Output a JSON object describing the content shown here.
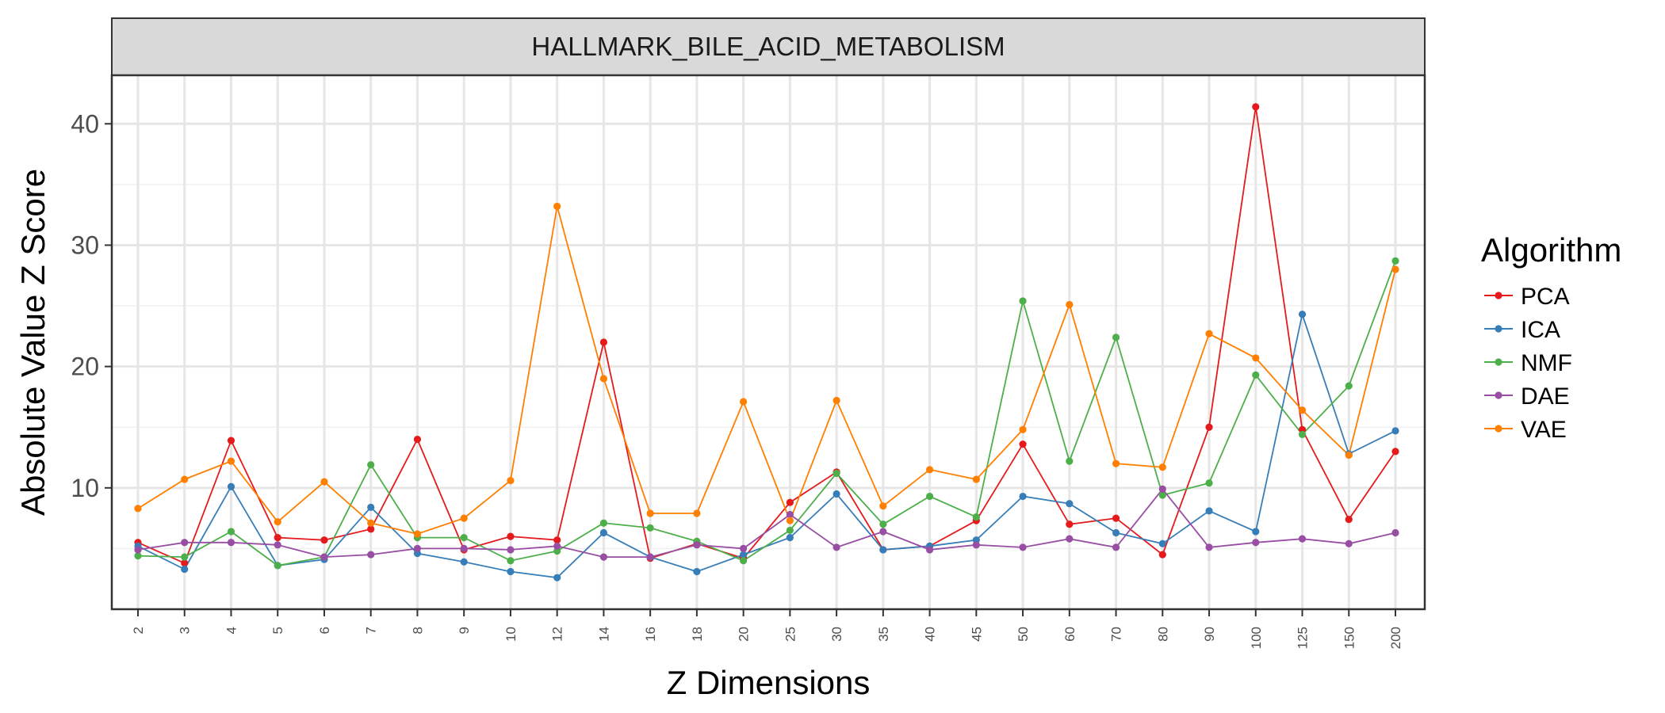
{
  "chart_data": {
    "type": "line",
    "facet_title": "HALLMARK_BILE_ACID_METABOLISM",
    "xlabel": "Z Dimensions",
    "ylabel": "Absolute Value Z Score",
    "categories": [
      "2",
      "3",
      "4",
      "5",
      "6",
      "7",
      "8",
      "9",
      "10",
      "12",
      "14",
      "16",
      "18",
      "20",
      "25",
      "30",
      "35",
      "40",
      "45",
      "50",
      "60",
      "70",
      "80",
      "90",
      "100",
      "125",
      "150",
      "200"
    ],
    "ylim": [
      0,
      44
    ],
    "yticks": [
      10,
      20,
      30,
      40
    ],
    "grid": true,
    "legend": {
      "title": "Algorithm",
      "position": "right"
    },
    "series": [
      {
        "name": "PCA",
        "color": "#e41a1c",
        "values": [
          5.5,
          3.8,
          13.9,
          5.9,
          5.7,
          6.6,
          14.0,
          4.9,
          6.0,
          5.7,
          22.0,
          4.2,
          5.4,
          4.2,
          8.8,
          11.3,
          4.9,
          5.2,
          7.3,
          13.6,
          7.0,
          7.5,
          4.5,
          15.0,
          41.4,
          14.8,
          7.4,
          13.0
        ]
      },
      {
        "name": "ICA",
        "color": "#377eb8",
        "values": [
          5.2,
          3.3,
          10.1,
          3.6,
          4.1,
          8.4,
          4.6,
          3.9,
          3.1,
          2.6,
          6.3,
          4.3,
          3.1,
          4.5,
          5.9,
          9.5,
          4.9,
          5.2,
          5.7,
          9.3,
          8.7,
          6.3,
          5.4,
          8.1,
          6.4,
          24.3,
          12.8,
          14.7
        ]
      },
      {
        "name": "NMF",
        "color": "#4daf4a",
        "values": [
          4.4,
          4.3,
          6.4,
          3.6,
          4.3,
          11.9,
          5.9,
          5.9,
          4.0,
          4.8,
          7.1,
          6.7,
          5.6,
          4.0,
          6.5,
          11.2,
          7.0,
          9.3,
          7.6,
          25.4,
          12.2,
          22.4,
          9.4,
          10.4,
          19.3,
          14.4,
          18.4,
          28.7
        ]
      },
      {
        "name": "DAE",
        "color": "#984ea3",
        "values": [
          4.9,
          5.5,
          5.5,
          5.3,
          4.3,
          4.5,
          5.0,
          5.0,
          4.9,
          5.2,
          4.3,
          4.3,
          5.3,
          5.0,
          7.8,
          5.1,
          6.4,
          4.9,
          5.3,
          5.1,
          5.8,
          5.1,
          9.9,
          5.1,
          5.5,
          5.8,
          5.4,
          6.3
        ]
      },
      {
        "name": "VAE",
        "color": "#ff7f00",
        "values": [
          8.3,
          10.7,
          12.2,
          7.2,
          10.5,
          7.1,
          6.2,
          7.5,
          10.6,
          33.2,
          19.0,
          7.9,
          7.9,
          17.1,
          7.3,
          17.2,
          8.5,
          11.5,
          10.7,
          14.8,
          25.1,
          12.0,
          11.7,
          22.7,
          20.7,
          16.4,
          12.7,
          28.0
        ]
      }
    ]
  }
}
